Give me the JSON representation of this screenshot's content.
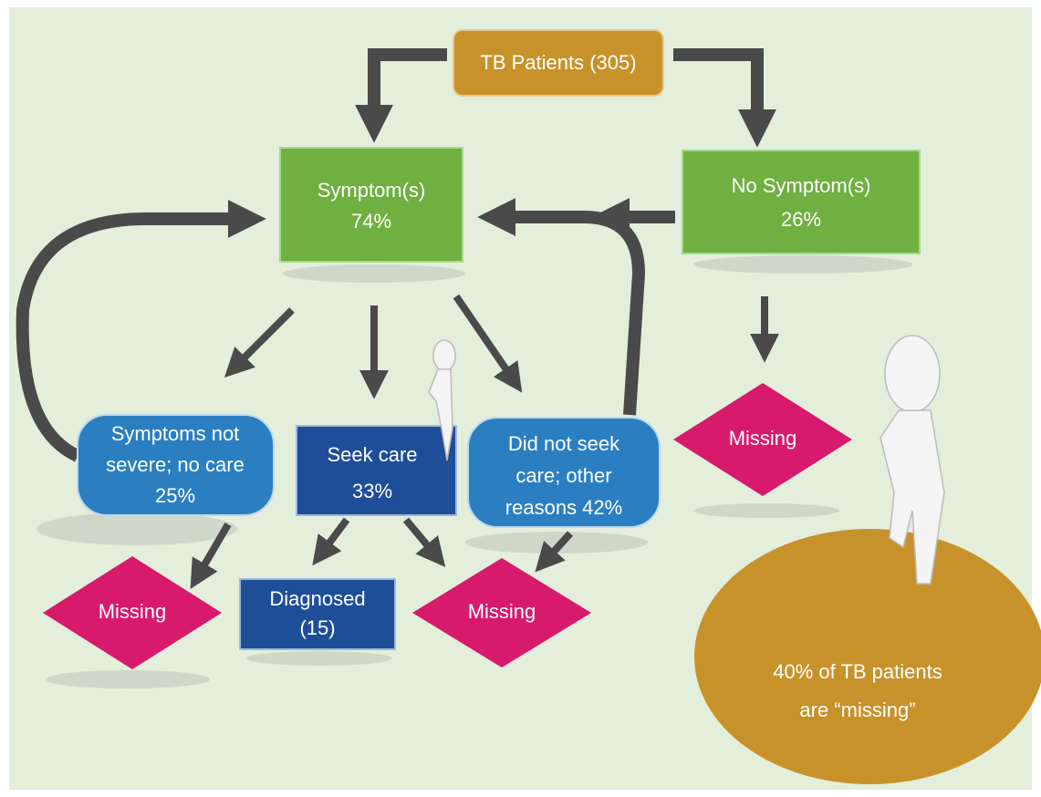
{
  "nodes": [
    {
      "lines": [
        "TB Patients (305)"
      ]
    },
    {
      "lines": [
        "Symptom(s)",
        "74%"
      ]
    },
    {
      "lines": [
        "No Symptom(s)",
        "26%"
      ]
    },
    {
      "lines": [
        "Symptoms not",
        "severe; no care",
        "25%"
      ]
    },
    {
      "lines": [
        "Seek care",
        "33%"
      ]
    },
    {
      "lines": [
        "Did not seek",
        "care; other",
        "reasons 42%"
      ]
    },
    {
      "lines": [
        "Missing"
      ]
    },
    {
      "lines": [
        "Missing"
      ]
    },
    {
      "lines": [
        "Diagnosed",
        "(15)"
      ]
    },
    {
      "lines": [
        "Missing"
      ]
    },
    {
      "lines": [
        "40% of TB patients",
        "are “missing”"
      ]
    }
  ]
}
